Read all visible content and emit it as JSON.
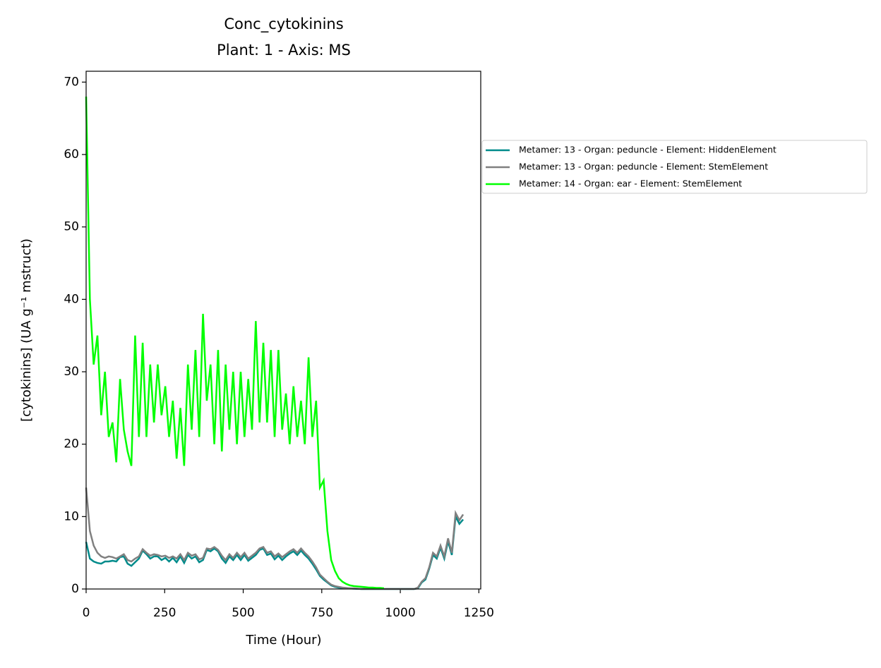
{
  "chart_data": {
    "type": "line",
    "title": "Conc_cytokinins",
    "subtitle": "Plant: 1 - Axis: MS",
    "x_label": "Time (Hour)",
    "y_label": "[cytokinins] (UA g⁻¹ mstruct)",
    "xlim": [
      0,
      1256
    ],
    "ylim": [
      0,
      71.5
    ],
    "xticks": [
      0,
      250,
      500,
      750,
      1000,
      1250
    ],
    "yticks": [
      0,
      10,
      20,
      30,
      40,
      50,
      60,
      70
    ],
    "grid": false,
    "legend": "outside right",
    "x": [
      0,
      12,
      24,
      36,
      48,
      60,
      72,
      84,
      96,
      108,
      120,
      132,
      144,
      156,
      168,
      180,
      192,
      204,
      216,
      228,
      240,
      252,
      264,
      276,
      288,
      300,
      312,
      324,
      336,
      348,
      360,
      372,
      384,
      396,
      408,
      420,
      432,
      444,
      456,
      468,
      480,
      492,
      504,
      516,
      528,
      540,
      552,
      564,
      576,
      588,
      600,
      612,
      624,
      636,
      648,
      660,
      672,
      684,
      696,
      708,
      720,
      732,
      744,
      756,
      768,
      780,
      792,
      804,
      816,
      828,
      840,
      852,
      864,
      876,
      888,
      900,
      912,
      924,
      936,
      948,
      960,
      972,
      984,
      996,
      1008,
      1020,
      1032,
      1044,
      1056,
      1068,
      1080,
      1092,
      1104,
      1116,
      1128,
      1140,
      1152,
      1164,
      1176,
      1188,
      1200
    ],
    "series": [
      {
        "name": "Metamer: 13 - Organ: peduncle - Element: HiddenElement",
        "color": "#008b8b",
        "values": [
          6.5,
          4.2,
          3.8,
          3.6,
          3.5,
          3.8,
          3.8,
          3.9,
          3.8,
          4.4,
          4.5,
          3.5,
          3.2,
          3.7,
          4.2,
          5.3,
          4.8,
          4.2,
          4.5,
          4.5,
          4.0,
          4.3,
          3.8,
          4.3,
          3.7,
          4.5,
          3.6,
          4.7,
          4.2,
          4.5,
          3.7,
          4.0,
          5.4,
          5.2,
          5.6,
          5.2,
          4.2,
          3.6,
          4.5,
          4.0,
          4.7,
          4.0,
          4.7,
          3.9,
          4.3,
          4.7,
          5.4,
          5.6,
          4.7,
          4.9,
          4.1,
          4.6,
          4.0,
          4.5,
          4.9,
          5.2,
          4.7,
          5.3,
          4.7,
          4.2,
          3.5,
          2.7,
          1.8,
          1.3,
          0.9,
          0.5,
          0.3,
          0.2,
          0.15,
          0.1,
          0.08,
          0.05,
          0.03,
          0,
          0,
          0,
          0,
          0,
          0,
          0,
          0,
          0,
          0,
          0,
          0,
          0,
          0,
          0,
          0.1,
          0.9,
          1.3,
          2.8,
          4.7,
          4.2,
          5.7,
          4.2,
          6.6,
          4.7,
          10,
          9,
          9.6
        ]
      },
      {
        "name": "Metamer: 13 - Organ: peduncle - Element: StemElement",
        "color": "#808080",
        "values": [
          14,
          8,
          6,
          5,
          4.5,
          4.3,
          4.5,
          4.4,
          4.2,
          4.5,
          4.8,
          4.0,
          3.8,
          4.2,
          4.5,
          5.5,
          5.0,
          4.6,
          4.8,
          4.7,
          4.5,
          4.6,
          4.3,
          4.5,
          4.2,
          4.8,
          4.0,
          5.0,
          4.6,
          4.8,
          4.1,
          4.3,
          5.6,
          5.5,
          5.8,
          5.4,
          4.6,
          4.0,
          4.8,
          4.3,
          5.0,
          4.4,
          5.0,
          4.2,
          4.6,
          5.0,
          5.6,
          5.8,
          5.0,
          5.2,
          4.5,
          4.9,
          4.4,
          4.8,
          5.2,
          5.5,
          5.0,
          5.6,
          5.0,
          4.5,
          3.8,
          3.0,
          2.0,
          1.5,
          1.0,
          0.6,
          0.4,
          0.3,
          0.2,
          0.15,
          0.1,
          0.1,
          0.05,
          0,
          0,
          0,
          0,
          0,
          0,
          0,
          0,
          0,
          0,
          0,
          0,
          0,
          0,
          0,
          0.2,
          1,
          1.5,
          3,
          5,
          4.5,
          6,
          4.5,
          7,
          5,
          10.5,
          9.5,
          10.3
        ]
      },
      {
        "name": "Metamer: 14 - Organ: ear - Element: StemElement",
        "color": "#00ff00",
        "values": [
          68,
          40,
          31,
          35,
          24,
          30,
          21,
          23,
          17.5,
          29,
          22,
          19,
          17,
          35,
          21,
          34,
          21,
          31,
          23,
          31,
          24,
          28,
          21,
          26,
          18,
          25,
          17,
          31,
          22,
          33,
          21,
          38,
          26,
          31,
          20,
          33,
          19,
          31,
          22,
          30,
          20,
          30,
          21,
          29,
          22,
          37,
          23,
          34,
          23,
          33,
          21,
          33,
          22,
          27,
          20,
          28,
          21,
          26,
          20,
          32,
          21,
          26,
          14,
          15,
          8,
          4,
          2.5,
          1.5,
          1,
          0.7,
          0.5,
          0.4,
          0.35,
          0.3,
          0.25,
          0.2,
          0.2,
          0.15,
          0.15,
          0.1,
          null,
          null,
          null,
          null,
          null,
          null,
          null,
          null,
          null,
          null,
          null,
          null,
          null,
          null,
          null,
          null,
          null,
          null,
          null,
          null,
          null
        ]
      }
    ]
  }
}
